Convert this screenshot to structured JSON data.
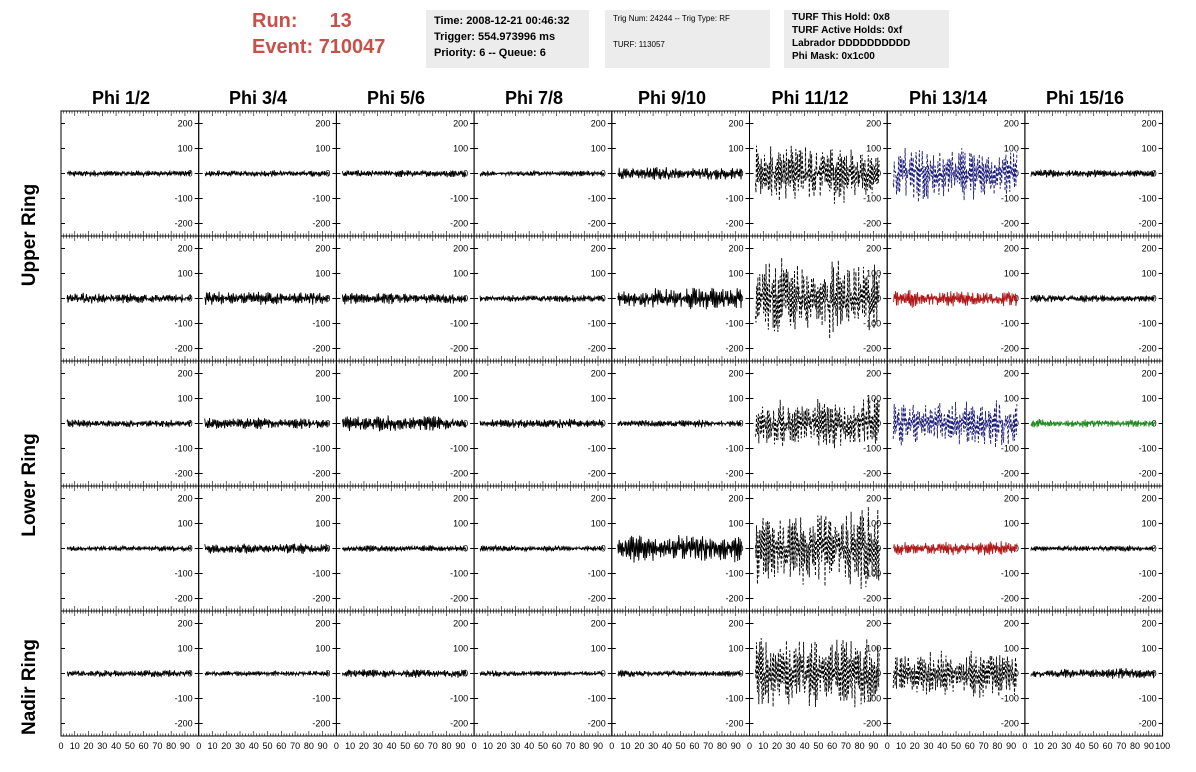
{
  "header": {
    "run_label": "Run:",
    "run_value": "13",
    "event_label": "Event:",
    "event_value": "710047"
  },
  "info_box_1": {
    "time": "Time: 2008-12-21 00:46:32",
    "trigger": "Trigger: 554.973996 ms",
    "priority": "Priority: 6 -- Queue: 6"
  },
  "info_box_2": {
    "trig": "Trig Num: 24244 -- Trig Type: RF",
    "turf": "TURF: 113057"
  },
  "info_box_3": {
    "hold": "TURF This Hold: 0x8",
    "active": "TURF Active Holds: 0xf",
    "labrador": "Labrador DDDDDDDDDD",
    "phimask": "Phi Mask: 0x1c00"
  },
  "columns": [
    "Phi 1/2",
    "Phi 3/4",
    "Phi 5/6",
    "Phi 7/8",
    "Phi 9/10",
    "Phi 11/12",
    "Phi 13/14",
    "Phi 15/16"
  ],
  "ring_labels": [
    "Upper Ring",
    "Lower Ring",
    "Nadir Ring"
  ],
  "colors": {
    "black": "#000000",
    "blue": "#1a1a7a",
    "red": "#b01818",
    "green": "#1e8a1e",
    "header_red": "#c8504a"
  },
  "chart_data": {
    "type": "line",
    "xlim": [
      0,
      100
    ],
    "ylim": [
      -250,
      250
    ],
    "y_ticks": [
      -200,
      -100,
      0,
      100,
      200
    ],
    "x_ticks": [
      0,
      10,
      20,
      30,
      40,
      50,
      60,
      70,
      80,
      90,
      100
    ],
    "rows": [
      {
        "ring": "Upper Ring",
        "amplitudes": [
          10,
          10,
          12,
          10,
          25,
          110,
          90,
          12
        ],
        "colors": [
          "black",
          "black",
          "black",
          "black",
          "black",
          "black",
          "blue",
          "black"
        ],
        "dashed": [
          false,
          false,
          false,
          false,
          false,
          true,
          true,
          false
        ]
      },
      {
        "ring": "Upper Ring",
        "amplitudes": [
          18,
          22,
          18,
          12,
          40,
          150,
          30,
          12
        ],
        "colors": [
          "black",
          "black",
          "black",
          "black",
          "black",
          "black",
          "red",
          "black"
        ],
        "dashed": [
          false,
          false,
          false,
          false,
          false,
          true,
          false,
          false
        ]
      },
      {
        "ring": "Lower Ring",
        "amplitudes": [
          15,
          20,
          25,
          15,
          12,
          90,
          90,
          15
        ],
        "colors": [
          "black",
          "black",
          "black",
          "black",
          "black",
          "black",
          "blue",
          "green"
        ],
        "dashed": [
          false,
          false,
          false,
          false,
          false,
          true,
          true,
          false
        ]
      },
      {
        "ring": "Lower Ring",
        "amplitudes": [
          10,
          20,
          12,
          10,
          45,
          130,
          25,
          10
        ],
        "colors": [
          "black",
          "black",
          "black",
          "black",
          "black",
          "black",
          "red",
          "black"
        ],
        "dashed": [
          false,
          false,
          false,
          false,
          false,
          true,
          false,
          false
        ]
      },
      {
        "ring": "Nadir Ring",
        "amplitudes": [
          12,
          10,
          18,
          10,
          10,
          120,
          80,
          18
        ],
        "colors": [
          "black",
          "black",
          "black",
          "black",
          "black",
          "black",
          "black",
          "black"
        ],
        "dashed": [
          false,
          false,
          false,
          false,
          false,
          true,
          true,
          false
        ]
      }
    ]
  }
}
